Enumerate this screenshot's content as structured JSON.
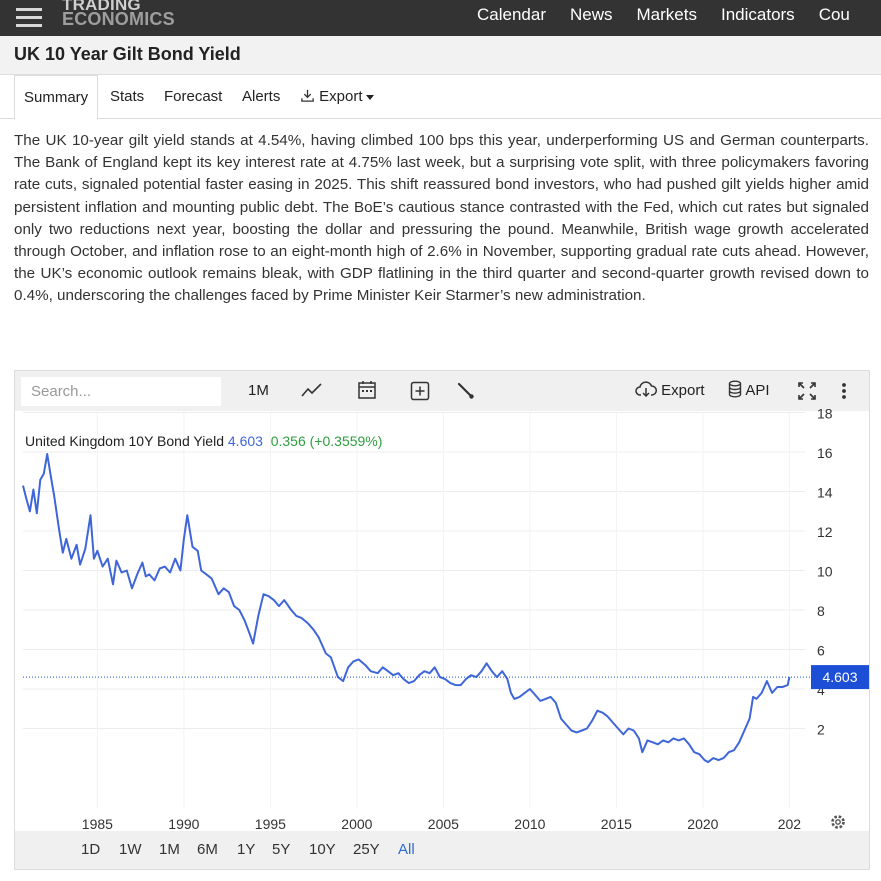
{
  "nav": {
    "logo_line1": "TRADING",
    "logo_line2": "ECONOMICS",
    "links": [
      "Calendar",
      "News",
      "Markets",
      "Indicators",
      "Cou"
    ]
  },
  "page_title": "UK 10 Year Gilt Bond Yield",
  "tabs": {
    "summary": "Summary",
    "stats": "Stats",
    "forecast": "Forecast",
    "alerts": "Alerts",
    "export": "Export"
  },
  "summary_text": "The UK 10-year gilt yield stands at 4.54%, having climbed 100 bps this year, underperforming US and German counterparts. The Bank of England kept its key interest rate at 4.75% last week, but a surprising vote split, with three policymakers favoring rate cuts, signaled potential faster easing in 2025. This shift reassured bond investors, who had pushed gilt yields higher amid persistent inflation and mounting public debt. The BoE’s cautious stance contrasted with the Fed, which cut rates but signaled only two reductions next year, boosting the dollar and pressuring the pound. Meanwhile, British wage growth accelerated through October, and inflation rose to an eight-month high of 2.6% in November, supporting gradual rate cuts ahead. However, the UK’s economic outlook remains bleak, with GDP flatlining in the third quarter and second-quarter growth revised down to 0.4%, underscoring the challenges faced by Prime Minister Keir Starmer’s new administration.",
  "toolbar": {
    "search_placeholder": "Search...",
    "interval": "1M",
    "export": "Export",
    "api": "API"
  },
  "legend": {
    "name": "United Kingdom 10Y Bond Yield",
    "value": "4.603",
    "change": "0.356 (+0.3559%)"
  },
  "ranges": [
    "1D",
    "1W",
    "1M",
    "6M",
    "1Y",
    "5Y",
    "10Y",
    "25Y",
    "All"
  ],
  "active_range": "All",
  "colors": {
    "line": "#3f66d9",
    "change": "#2e9e3e",
    "active_range": "#2f6cd6",
    "price_tag": "#1c4fd6"
  },
  "icons": [
    "hamburger-icon",
    "line-chart-icon",
    "calendar-icon",
    "add-icon",
    "wrench-icon",
    "cloud-download-icon",
    "database-icon",
    "fullscreen-icon",
    "more-vertical-icon",
    "gear-icon",
    "download-icon"
  ],
  "chart_data": {
    "type": "line",
    "series": [
      {
        "name": "United Kingdom 10Y Bond Yield",
        "x": [
          1980.7,
          1980.9,
          1981.1,
          1981.3,
          1981.5,
          1981.7,
          1981.9,
          1982.1,
          1982.3,
          1982.5,
          1982.8,
          1983.0,
          1983.2,
          1983.5,
          1983.8,
          1984.0,
          1984.3,
          1984.6,
          1984.8,
          1985.0,
          1985.3,
          1985.6,
          1985.9,
          1986.1,
          1986.4,
          1986.7,
          1987.0,
          1987.3,
          1987.6,
          1987.8,
          1988.0,
          1988.3,
          1988.6,
          1988.9,
          1989.2,
          1989.5,
          1989.8,
          1990.0,
          1990.2,
          1990.5,
          1990.8,
          1991.0,
          1991.3,
          1991.6,
          1992.0,
          1992.3,
          1992.6,
          1992.9,
          1993.2,
          1993.5,
          1993.8,
          1994.0,
          1994.3,
          1994.6,
          1994.9,
          1995.2,
          1995.5,
          1995.8,
          1996.2,
          1996.5,
          1996.8,
          1997.2,
          1997.5,
          1997.8,
          1998.2,
          1998.5,
          1998.9,
          1999.2,
          1999.5,
          1999.8,
          2000.1,
          2000.5,
          2000.8,
          2001.2,
          2001.5,
          2001.8,
          2002.1,
          2002.4,
          2002.7,
          2003.0,
          2003.3,
          2003.6,
          2003.9,
          2004.2,
          2004.5,
          2004.8,
          2005.1,
          2005.4,
          2005.7,
          2006.0,
          2006.3,
          2006.6,
          2006.9,
          2007.2,
          2007.5,
          2007.8,
          2008.1,
          2008.4,
          2008.7,
          2008.9,
          2009.1,
          2009.4,
          2009.7,
          2010.0,
          2010.3,
          2010.6,
          2010.9,
          2011.2,
          2011.5,
          2011.8,
          2012.1,
          2012.4,
          2012.7,
          2013.0,
          2013.3,
          2013.6,
          2013.9,
          2014.2,
          2014.5,
          2014.8,
          2015.1,
          2015.4,
          2015.7,
          2016.0,
          2016.3,
          2016.5,
          2016.8,
          2017.1,
          2017.4,
          2017.7,
          2018.0,
          2018.3,
          2018.6,
          2018.9,
          2019.2,
          2019.5,
          2019.8,
          2020.1,
          2020.3,
          2020.6,
          2020.9,
          2021.2,
          2021.5,
          2021.8,
          2022.1,
          2022.4,
          2022.7,
          2022.9,
          2023.1,
          2023.4,
          2023.7,
          2024.0,
          2024.3,
          2024.6,
          2024.9,
          2025.0
        ],
        "values": [
          14.3,
          13.6,
          13.0,
          14.1,
          12.9,
          14.6,
          14.9,
          15.9,
          14.8,
          13.8,
          12.0,
          10.9,
          11.6,
          10.6,
          11.3,
          10.3,
          11.1,
          12.8,
          10.6,
          11.0,
          10.2,
          10.6,
          9.3,
          10.5,
          9.9,
          10.0,
          9.1,
          9.8,
          10.4,
          9.7,
          9.8,
          9.5,
          10.1,
          10.2,
          9.9,
          10.6,
          10.0,
          11.6,
          12.8,
          11.2,
          11.0,
          10.0,
          9.8,
          9.6,
          8.8,
          9.1,
          8.9,
          8.2,
          8.0,
          7.5,
          6.8,
          6.3,
          7.7,
          8.8,
          8.7,
          8.5,
          8.2,
          8.5,
          8.0,
          7.7,
          7.6,
          7.3,
          7.0,
          6.6,
          5.8,
          5.6,
          4.6,
          4.4,
          5.1,
          5.4,
          5.5,
          5.2,
          4.9,
          4.8,
          5.1,
          4.9,
          4.7,
          4.8,
          4.5,
          4.3,
          4.4,
          4.7,
          4.9,
          4.8,
          5.1,
          4.6,
          4.5,
          4.3,
          4.2,
          4.2,
          4.5,
          4.7,
          4.6,
          4.9,
          5.3,
          4.9,
          4.6,
          4.9,
          4.5,
          3.8,
          3.5,
          3.6,
          3.8,
          4.0,
          3.7,
          3.4,
          3.5,
          3.6,
          3.3,
          2.5,
          2.2,
          1.9,
          1.8,
          1.9,
          2.0,
          2.4,
          2.9,
          2.8,
          2.6,
          2.3,
          2.0,
          1.7,
          2.0,
          1.9,
          1.5,
          0.8,
          1.4,
          1.3,
          1.2,
          1.4,
          1.3,
          1.5,
          1.4,
          1.5,
          1.2,
          0.8,
          0.7,
          0.4,
          0.3,
          0.5,
          0.4,
          0.5,
          0.8,
          0.9,
          1.3,
          1.9,
          2.5,
          3.6,
          3.5,
          3.8,
          4.4,
          3.8,
          4.1,
          4.1,
          4.2,
          4.603
        ]
      }
    ],
    "xlabel": "",
    "ylabel": "",
    "xticks": [
      1985,
      1990,
      1995,
      2000,
      2005,
      2010,
      2015,
      2020,
      "202"
    ],
    "yticks": [
      2,
      4,
      6,
      8,
      10,
      12,
      14,
      16,
      18
    ],
    "xlim": [
      1980.7,
      2025.5
    ],
    "ylim": [
      0,
      19
    ],
    "last_value_label": "4.603",
    "grid": true,
    "axis_side": "right"
  }
}
